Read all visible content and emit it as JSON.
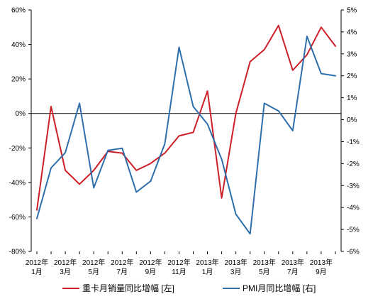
{
  "chart_data": {
    "type": "line",
    "x": [
      "2012-01",
      "2012-02",
      "2012-03",
      "2012-04",
      "2012-05",
      "2012-06",
      "2012-07",
      "2012-08",
      "2012-09",
      "2012-10",
      "2012-11",
      "2012-12",
      "2013-01",
      "2013-02",
      "2013-03",
      "2013-04",
      "2013-05",
      "2013-06",
      "2013-07",
      "2013-08",
      "2013-09",
      "2013-10"
    ],
    "x_tick_labels": [
      {
        "year": "2012年",
        "month": "1月"
      },
      {
        "year": "2012年",
        "month": "3月"
      },
      {
        "year": "2012年",
        "month": "5月"
      },
      {
        "year": "2012年",
        "month": "7月"
      },
      {
        "year": "2012年",
        "month": "9月"
      },
      {
        "year": "2012年",
        "month": "11月"
      },
      {
        "year": "2013年",
        "month": "1月"
      },
      {
        "year": "2013年",
        "month": "3月"
      },
      {
        "year": "2013年",
        "month": "5月"
      },
      {
        "year": "2013年",
        "month": "7月"
      },
      {
        "year": "2013年",
        "month": "9月"
      }
    ],
    "y_left": {
      "ylim": [
        -80,
        60
      ],
      "ticks": [
        60,
        40,
        20,
        0,
        -20,
        -40,
        -60,
        -80
      ],
      "tick_labels": [
        "60%",
        "40%",
        "20%",
        "0%",
        "-20%",
        "-40%",
        "-60%",
        "-80%"
      ]
    },
    "y_right": {
      "ylim": [
        -6,
        5
      ],
      "ticks": [
        5,
        4,
        3,
        2,
        1,
        0,
        -1,
        -2,
        -3,
        -4,
        -5,
        -6
      ],
      "tick_labels": [
        "5%",
        "4%",
        "3%",
        "2%",
        "1%",
        "0%",
        "-1%",
        "-2%",
        "-3%",
        "-4%",
        "-5%",
        "-6%"
      ]
    },
    "series": [
      {
        "name": "重卡月销量同比增幅 [左]",
        "axis": "left",
        "color": "#cc1f27",
        "values": [
          -56,
          4,
          -33,
          -41,
          -33,
          -22,
          -23,
          -33,
          -29,
          -23,
          -13,
          -11,
          13,
          -49,
          0,
          30,
          37,
          51,
          25,
          34,
          50,
          39
        ]
      },
      {
        "name": "PMI月同比增幅 [右]",
        "axis": "right",
        "color": "#2e6fab",
        "values": [
          -4.5,
          -2.2,
          -1.5,
          0.75,
          -3.1,
          -1.4,
          -1.3,
          -3.3,
          -2.8,
          -1.1,
          3.3,
          0.6,
          -0.2,
          -1.8,
          -4.3,
          -5.2,
          0.75,
          0.4,
          -0.5,
          3.8,
          2.1,
          2.0
        ]
      }
    ],
    "legend_placement": "bottom"
  }
}
